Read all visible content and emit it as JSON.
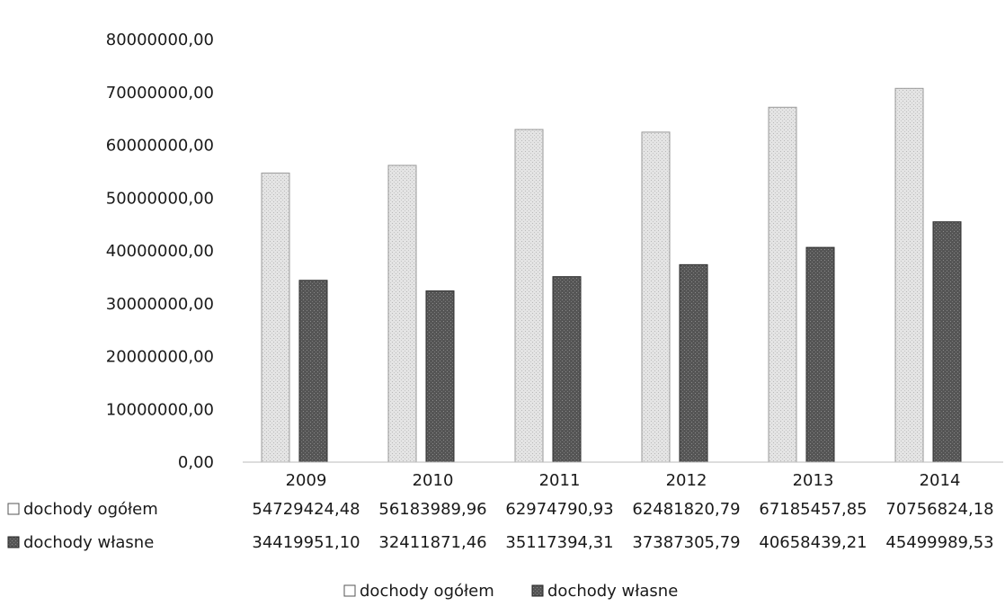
{
  "chart_data": {
    "type": "bar",
    "title": "",
    "xlabel": "",
    "ylabel": "",
    "ylim": [
      0,
      80000000
    ],
    "yticks": [
      "0,00",
      "10000000,00",
      "20000000,00",
      "30000000,00",
      "40000000,00",
      "50000000,00",
      "60000000,00",
      "70000000,00",
      "80000000,00"
    ],
    "categories": [
      "2009",
      "2010",
      "2011",
      "2012",
      "2013",
      "2014"
    ],
    "series": [
      {
        "name": "dochody ogółem",
        "color": "#d9d9d9",
        "values": [
          54729424.48,
          56183989.96,
          62974790.93,
          62481820.79,
          67185457.85,
          70756824.18
        ],
        "labels": [
          "54729424,48",
          "56183989,96",
          "62974790,93",
          "62481820,79",
          "67185457,85",
          "70756824,18"
        ]
      },
      {
        "name": "dochody własne",
        "color": "#595959",
        "values": [
          34419951.1,
          32411871.46,
          35117394.31,
          37387305.79,
          40658439.21,
          45499989.53
        ],
        "labels": [
          "34419951,10",
          "32411871,46",
          "35117394,31",
          "37387305,79",
          "40658439,21",
          "45499989,53"
        ]
      }
    ],
    "grid": false,
    "legend": "bottom",
    "data_table": true
  }
}
